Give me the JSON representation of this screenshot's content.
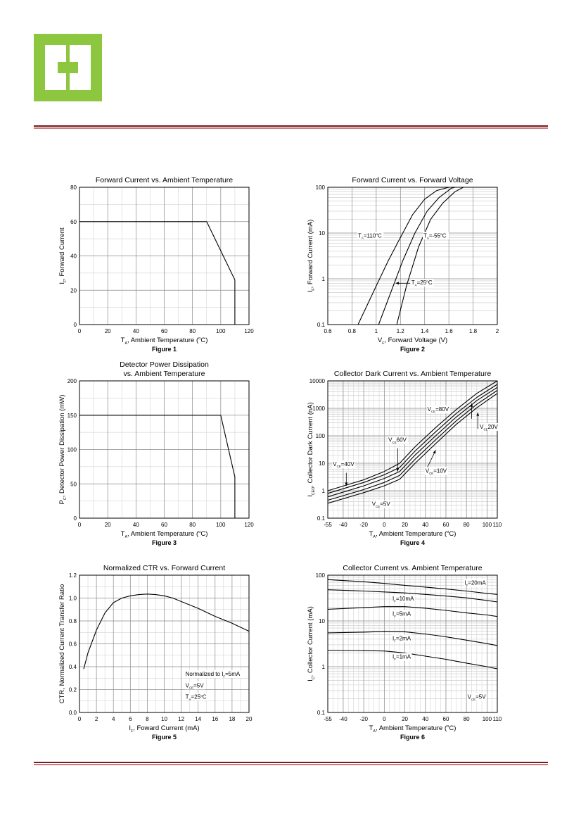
{
  "brand": {
    "logo": "company-logo",
    "accent_color": "#8dc63f",
    "rule_color": "#7b1a1f"
  },
  "charts": [
    {
      "type": "line",
      "figure_label": "Figure 1",
      "title": [
        "Forward Current vs. Ambient Temperature"
      ],
      "xlabel": {
        "main": "T",
        "sub": "A",
        "rest": ", Ambient Temperature (",
        "sup": "o",
        "end": "C)"
      },
      "ylabel": {
        "main": "I",
        "sub": "F",
        "rest": ", Forward Current"
      },
      "x_scale": "linear",
      "y_scale": "linear",
      "xlim": [
        0,
        120
      ],
      "ylim": [
        0,
        80
      ],
      "xticks": [
        0,
        20,
        40,
        60,
        80,
        100,
        120
      ],
      "yticks": [
        0,
        20,
        40,
        60,
        80
      ],
      "series": [
        {
          "name": "I_F max",
          "x": [
            0,
            90,
            110,
            110
          ],
          "y": [
            60,
            60,
            26,
            0
          ]
        }
      ],
      "labels": []
    },
    {
      "type": "line",
      "figure_label": "Figure 2",
      "title": [
        "Forward Current vs. Forward Voltage"
      ],
      "xlabel": {
        "main": "V",
        "sub": "F",
        "rest": ", Forward Voltage (V)"
      },
      "ylabel": {
        "main": "I",
        "sub": "F",
        "rest": ", Forward Current (mA)"
      },
      "x_scale": "linear",
      "y_scale": "log",
      "xlim": [
        0.6,
        2.0
      ],
      "ylim": [
        0.1,
        100
      ],
      "xticks": [
        0.6,
        0.8,
        1.0,
        1.2,
        1.4,
        1.6,
        1.8,
        2.0
      ],
      "yticks": [
        0.1,
        1,
        10,
        100
      ],
      "ytick_labels": [
        "0.1",
        "1",
        "10",
        "100"
      ],
      "series": [
        {
          "name": "TA=110°C",
          "x": [
            0.85,
            1.0,
            1.1,
            1.2,
            1.3,
            1.4,
            1.5,
            1.6
          ],
          "y": [
            0.1,
            0.7,
            2.5,
            8,
            25,
            55,
            85,
            100
          ]
        },
        {
          "name": "TA=25°C",
          "x": [
            1.02,
            1.12,
            1.22,
            1.32,
            1.42,
            1.52,
            1.62,
            1.65
          ],
          "y": [
            0.1,
            0.5,
            2.5,
            10,
            30,
            60,
            95,
            100
          ]
        },
        {
          "name": "TA=-55°C",
          "x": [
            1.17,
            1.25,
            1.35,
            1.45,
            1.55,
            1.65,
            1.72
          ],
          "y": [
            0.1,
            0.7,
            5,
            20,
            45,
            80,
            100
          ]
        }
      ],
      "labels": [
        {
          "text": "T",
          "sub": "A",
          "rest": "=110",
          "sup": "o",
          "end": "C",
          "x": 0.85,
          "y": 8
        },
        {
          "text": "T",
          "sub": "A",
          "rest": "=-55",
          "sup": "o",
          "end": "C",
          "x": 1.39,
          "y": 8
        },
        {
          "text": "T",
          "sub": "A",
          "rest": "=25",
          "sup": "o",
          "end": "C",
          "x": 1.29,
          "y": 0.75
        }
      ],
      "arrows": [
        {
          "x1": 1.28,
          "y1": 0.8,
          "x2": 1.16,
          "y2": 0.8
        }
      ]
    },
    {
      "type": "line",
      "figure_label": "Figure 3",
      "title": [
        "Detector Power Dissipation",
        "vs. Ambient Temperature"
      ],
      "xlabel": {
        "main": "T",
        "sub": "A",
        "rest": ", Ambient Temperature (",
        "sup": "o",
        "end": "C)"
      },
      "ylabel": {
        "main": "P",
        "sub": "C",
        "rest": ", Detector Power Dissipation (mW)"
      },
      "x_scale": "linear",
      "y_scale": "linear",
      "xlim": [
        0,
        120
      ],
      "ylim": [
        0,
        200
      ],
      "xticks": [
        0,
        20,
        40,
        60,
        80,
        100,
        120
      ],
      "yticks": [
        0,
        50,
        100,
        150,
        200
      ],
      "series": [
        {
          "name": "P_C max",
          "x": [
            0,
            100,
            110,
            110
          ],
          "y": [
            150,
            150,
            60,
            0
          ]
        }
      ],
      "labels": []
    },
    {
      "type": "line",
      "figure_label": "Figure 4",
      "title": [
        "Collector Dark Current vs. Ambient Temperature"
      ],
      "xlabel": {
        "main": "T",
        "sub": "A",
        "rest": ", Ambient Temperature (",
        "sup": "o",
        "end": "C)"
      },
      "ylabel": {
        "main": "I",
        "sub": "CEO",
        "rest": ", Collector Dark Current (nA)"
      },
      "x_scale": "linear",
      "y_scale": "log",
      "xlim": [
        -55,
        110
      ],
      "ylim": [
        0.1,
        10000
      ],
      "xticks": [
        -55,
        -40,
        -20,
        0,
        20,
        40,
        60,
        80,
        100,
        110
      ],
      "yticks": [
        0.1,
        1,
        10,
        100,
        1000,
        10000
      ],
      "ytick_labels": [
        "0.1",
        "1",
        "10",
        "100",
        "1000",
        "10000"
      ],
      "series": [
        {
          "name": "VCE=80V",
          "x": [
            -55,
            -20,
            0,
            15,
            30,
            50,
            70,
            90,
            110
          ],
          "y": [
            1.0,
            2.5,
            5,
            10,
            40,
            200,
            900,
            3500,
            10000
          ]
        },
        {
          "name": "VCE=60V",
          "x": [
            -55,
            -20,
            0,
            15,
            30,
            50,
            70,
            90,
            110
          ],
          "y": [
            0.8,
            2.0,
            3.8,
            7,
            28,
            140,
            650,
            2500,
            7500
          ]
        },
        {
          "name": "VCE=40V",
          "x": [
            -55,
            -20,
            0,
            15,
            30,
            50,
            70,
            90,
            110
          ],
          "y": [
            0.6,
            1.5,
            2.8,
            5,
            20,
            100,
            480,
            1900,
            5800
          ]
        },
        {
          "name": "VCE=20V",
          "x": [
            -55,
            -20,
            0,
            15,
            30,
            50,
            70,
            90,
            110
          ],
          "y": [
            0.45,
            1.1,
            2.0,
            3.6,
            14,
            72,
            350,
            1400,
            4500
          ]
        },
        {
          "name": "VCE=10V",
          "x": [
            -55,
            -20,
            0,
            15,
            30,
            50,
            70,
            90,
            110
          ],
          "y": [
            0.35,
            0.85,
            1.5,
            2.6,
            10,
            52,
            260,
            1050,
            3500
          ]
        }
      ],
      "labels": [
        {
          "text": "V",
          "sub": "CE",
          "rest": "=80V",
          "x": 42,
          "y": 800
        },
        {
          "text": "V",
          "sub": "CE",
          "rest": "60V",
          "x": 4,
          "y": 60
        },
        {
          "text": "V",
          "sub": "CE",
          "rest": "=40V",
          "x": -50,
          "y": 8
        },
        {
          "text": "V",
          "sub": "CE",
          "rest": "20V",
          "x": 93,
          "y": 180
        },
        {
          "text": "V",
          "sub": "CE",
          "rest": "=10V",
          "x": 40,
          "y": 4.5
        },
        {
          "text": "V",
          "sub": "CE",
          "rest": "=5V",
          "x": -12,
          "y": 0.28
        }
      ],
      "arrows": [
        {
          "x1": 85,
          "y1": 420,
          "x2": 85,
          "y2": 1500
        },
        {
          "x1": 13,
          "y1": 35,
          "x2": 13,
          "y2": 5
        },
        {
          "x1": -37,
          "y1": 4.5,
          "x2": -37,
          "y2": 1.5
        },
        {
          "x1": 91,
          "y1": 180,
          "x2": 91,
          "y2": 700
        },
        {
          "x1": 40,
          "y1": 5,
          "x2": 50,
          "y2": 30
        }
      ]
    },
    {
      "type": "line",
      "figure_label": "Figure 5",
      "title": [
        "Normalized CTR vs. Forward Current"
      ],
      "xlabel": {
        "main": "I",
        "sub": "F",
        "rest": ", Foward Current (mA)"
      },
      "ylabel": {
        "main": "",
        "sub": "",
        "rest": "CTR, Normalized Current Transfer Ratio"
      },
      "x_scale": "linear",
      "y_scale": "linear",
      "xlim": [
        0,
        20
      ],
      "ylim": [
        0,
        1.2
      ],
      "xticks": [
        0,
        2,
        4,
        6,
        8,
        10,
        12,
        14,
        16,
        18,
        20
      ],
      "yticks": [
        0.0,
        0.2,
        0.4,
        0.6,
        0.8,
        1.0,
        1.2
      ],
      "ytick_labels": [
        "0.0",
        "0.2",
        "0.4",
        "0.6",
        "0.8",
        "1.0",
        "1.2"
      ],
      "series": [
        {
          "name": "CTR",
          "x": [
            0.5,
            1,
            2,
            3,
            4,
            5,
            6,
            7,
            8,
            9,
            10,
            11,
            12,
            14,
            16,
            18,
            20
          ],
          "y": [
            0.38,
            0.52,
            0.72,
            0.87,
            0.96,
            1.0,
            1.02,
            1.03,
            1.035,
            1.03,
            1.02,
            1.0,
            0.97,
            0.91,
            0.84,
            0.78,
            0.71
          ]
        }
      ],
      "labels": [
        {
          "text": "Normalized to I",
          "sub": "F",
          "rest": "=5mA",
          "x": 12.5,
          "y": 0.32
        },
        {
          "text": "V",
          "sub": "CE",
          "rest": "=5V",
          "x": 12.5,
          "y": 0.22
        },
        {
          "text": "T",
          "sub": "A",
          "rest": "=25",
          "sup": "o",
          "end": "C",
          "x": 12.5,
          "y": 0.12
        }
      ]
    },
    {
      "type": "line",
      "figure_label": "Figure 6",
      "title": [
        "Collector Current vs. Ambient Temperature"
      ],
      "xlabel": {
        "main": "T",
        "sub": "A",
        "rest": ", Ambient Temperature (",
        "sup": "o",
        "end": "C)"
      },
      "ylabel": {
        "main": "I",
        "sub": "C",
        "rest": ", Collector Current (mA)"
      },
      "x_scale": "linear",
      "y_scale": "log",
      "xlim": [
        -55,
        110
      ],
      "ylim": [
        0.1,
        100
      ],
      "xticks": [
        -55,
        -40,
        -20,
        0,
        20,
        40,
        60,
        80,
        100,
        110
      ],
      "yticks": [
        0.1,
        1,
        10,
        100
      ],
      "ytick_labels": [
        "0.1",
        "1",
        "10",
        "100"
      ],
      "series": [
        {
          "name": "IF=20mA",
          "x": [
            -55,
            -20,
            0,
            20,
            40,
            60,
            80,
            100,
            110
          ],
          "y": [
            80,
            72,
            66,
            60,
            55,
            50,
            45,
            40,
            38
          ]
        },
        {
          "name": "IF=10mA",
          "x": [
            -55,
            -20,
            0,
            20,
            40,
            60,
            80,
            100,
            110
          ],
          "y": [
            48,
            45,
            43,
            41,
            38,
            35,
            32,
            28,
            26
          ]
        },
        {
          "name": "IF=5mA",
          "x": [
            -55,
            -20,
            0,
            20,
            40,
            60,
            80,
            100,
            110
          ],
          "y": [
            18,
            19.5,
            20.5,
            20.5,
            19,
            17,
            15,
            13.5,
            12.5
          ]
        },
        {
          "name": "IF=2mA",
          "x": [
            -55,
            -20,
            0,
            20,
            40,
            60,
            80,
            100,
            110
          ],
          "y": [
            5.5,
            5.7,
            5.9,
            5.8,
            5.2,
            4.5,
            3.8,
            3.2,
            2.9
          ]
        },
        {
          "name": "IF=1mA",
          "x": [
            -55,
            -20,
            0,
            20,
            40,
            60,
            80,
            100,
            110
          ],
          "y": [
            2.3,
            2.25,
            2.2,
            2.0,
            1.7,
            1.45,
            1.2,
            1.0,
            0.9
          ]
        }
      ],
      "labels": [
        {
          "text": "I",
          "sub": "F",
          "rest": "=20mA",
          "x": 78,
          "y": 62
        },
        {
          "text": "I",
          "sub": "F",
          "rest": "=10mA",
          "x": 8,
          "y": 28
        },
        {
          "text": "I",
          "sub": "F",
          "rest": "=5mA",
          "x": 8,
          "y": 13
        },
        {
          "text": "I",
          "sub": "F",
          "rest": "=2mA",
          "x": 8,
          "y": 3.8
        },
        {
          "text": "I",
          "sub": "F",
          "rest": "=1mA",
          "x": 8,
          "y": 1.5
        },
        {
          "text": "V",
          "sub": "CE",
          "rest": "=5V",
          "x": 81,
          "y": 0.2
        }
      ]
    }
  ]
}
